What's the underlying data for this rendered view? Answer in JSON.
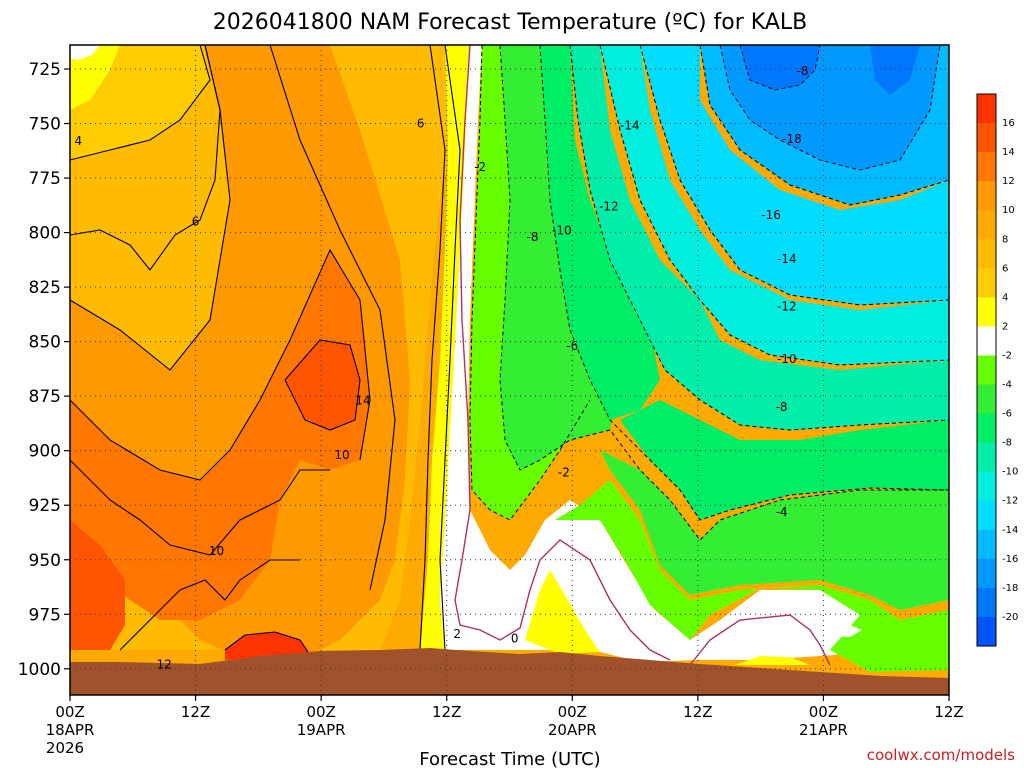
{
  "chart_data": {
    "type": "heatmap",
    "title": "2026041800 NAM Forecast Temperature (ºC) for KALB",
    "xlabel": "Forecast Time (UTC)",
    "ylabel": "",
    "credit": "coolwx.com/models",
    "x_ticks": [
      {
        "hour": 0,
        "label": "00Z",
        "sub1": "18APR",
        "sub2": "2026"
      },
      {
        "hour": 12,
        "label": "12Z",
        "sub1": "",
        "sub2": ""
      },
      {
        "hour": 24,
        "label": "00Z",
        "sub1": "19APR",
        "sub2": ""
      },
      {
        "hour": 36,
        "label": "12Z",
        "sub1": "",
        "sub2": ""
      },
      {
        "hour": 48,
        "label": "00Z",
        "sub1": "20APR",
        "sub2": ""
      },
      {
        "hour": 60,
        "label": "12Z",
        "sub1": "",
        "sub2": ""
      },
      {
        "hour": 72,
        "label": "00Z",
        "sub1": "21APR",
        "sub2": ""
      },
      {
        "hour": 84,
        "label": "12Z",
        "sub1": "",
        "sub2": ""
      }
    ],
    "xlim": [
      0,
      84
    ],
    "y_ticks": [
      725,
      750,
      775,
      800,
      825,
      850,
      875,
      900,
      925,
      950,
      975,
      1000
    ],
    "ylim": [
      1012,
      714
    ],
    "grid": true,
    "colorbar": {
      "labels": [
        "16",
        "14",
        "12",
        "10",
        "8",
        "6",
        "4",
        "2",
        "-2",
        "-4",
        "-6",
        "-8",
        "-10",
        "-12",
        "-14",
        "-16",
        "-18",
        "-20"
      ],
      "colors": [
        "#ff3300",
        "#ff5500",
        "#ff7700",
        "#ff9900",
        "#ffaa00",
        "#ffbb00",
        "#ffcc00",
        "#ffff00",
        "#ffffff",
        "#66ff00",
        "#33ee33",
        "#00ee66",
        "#00eeaa",
        "#00eedd",
        "#00ddff",
        "#00bbff",
        "#0099ff",
        "#0077ff",
        "#0055ff"
      ]
    },
    "contour_labels": [
      {
        "text": "4",
        "hour": 0.8,
        "p": 758
      },
      {
        "text": "6",
        "hour": 12,
        "p": 795
      },
      {
        "text": "6",
        "hour": 33.5,
        "p": 750
      },
      {
        "text": "14",
        "hour": 28,
        "p": 877
      },
      {
        "text": "10",
        "hour": 26,
        "p": 902
      },
      {
        "text": "10",
        "hour": 14,
        "p": 946
      },
      {
        "text": "12",
        "hour": 9,
        "p": 998
      },
      {
        "text": "2",
        "hour": 37,
        "p": 984
      },
      {
        "text": "0",
        "hour": 42.5,
        "p": 986
      },
      {
        "text": "-2",
        "hour": 39.2,
        "p": 770
      },
      {
        "text": "-8",
        "hour": 44.2,
        "p": 802
      },
      {
        "text": "-10",
        "hour": 47,
        "p": 799
      },
      {
        "text": "-12",
        "hour": 51.5,
        "p": 788
      },
      {
        "text": "-14",
        "hour": 53.5,
        "p": 751
      },
      {
        "text": "-18",
        "hour": 69,
        "p": 757
      },
      {
        "text": "-16",
        "hour": 67,
        "p": 792
      },
      {
        "text": "-14",
        "hour": 68.5,
        "p": 812
      },
      {
        "text": "-12",
        "hour": 68.5,
        "p": 834
      },
      {
        "text": "-10",
        "hour": 68.5,
        "p": 858
      },
      {
        "text": "-8",
        "hour": 68,
        "p": 880
      },
      {
        "text": "-6",
        "hour": 48,
        "p": 852
      },
      {
        "text": "-2",
        "hour": 47.2,
        "p": 910
      },
      {
        "text": "-4",
        "hour": 68,
        "p": 928
      },
      {
        "text": "-8",
        "hour": 70,
        "p": 726
      }
    ]
  }
}
